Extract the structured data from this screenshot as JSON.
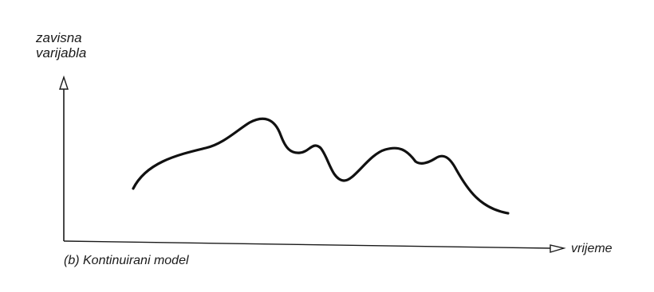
{
  "figure": {
    "y_axis_label_line1": "zavisna",
    "y_axis_label_line2": "varijabla",
    "x_axis_label": "vrijeme",
    "caption": "(b) Kontinuirani model"
  },
  "chart_data": {
    "type": "line",
    "xlabel": "vrijeme",
    "ylabel": "zavisna varijabla",
    "grid": false,
    "legend": "none",
    "axis_ticks": "none",
    "curve_shape": "continuous smooth curve rising from a low start to a first peak, dipping, small bump, deep dip, second peak, shoulder, then falling to the lowest value at the end",
    "colors": {
      "axis": "#1a1a1a",
      "curve": "#111111"
    }
  }
}
